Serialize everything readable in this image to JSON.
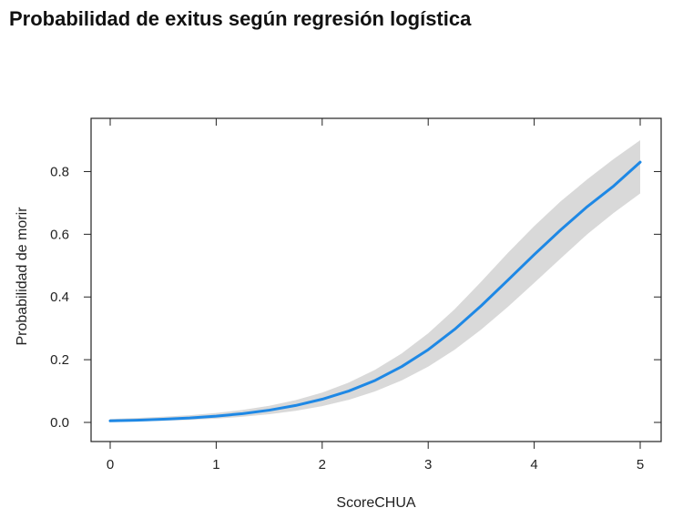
{
  "page": {
    "title": "Probabilidad de exitus según regresión logística"
  },
  "chart_data": {
    "type": "line",
    "title": "Probabilidad de exitus según regresión logística",
    "xlabel": "ScoreCHUA",
    "ylabel": "Probabilidad de morir",
    "xlim": [
      0,
      5
    ],
    "ylim": [
      0,
      0.9
    ],
    "x_ticks": [
      "0",
      "1",
      "2",
      "3",
      "4",
      "5"
    ],
    "y_ticks": [
      "0.0",
      "0.2",
      "0.4",
      "0.6",
      "0.8"
    ],
    "grid": false,
    "legend": "none",
    "line_color": "#1E88E5",
    "band_color": "#D9D9D9",
    "series": [
      {
        "x": [
          0,
          0.25,
          0.5,
          0.75,
          1,
          1.25,
          1.5,
          1.75,
          2,
          2.25,
          2.5,
          2.75,
          3,
          3.25,
          3.5,
          3.75,
          4,
          4.25,
          4.5,
          4.75,
          5
        ],
        "y": [
          0.005,
          0.007,
          0.01,
          0.014,
          0.02,
          0.028,
          0.039,
          0.054,
          0.074,
          0.1,
          0.134,
          0.178,
          0.232,
          0.297,
          0.372,
          0.453,
          0.535,
          0.614,
          0.688,
          0.754,
          0.83
        ],
        "lower": [
          0.002,
          0.003,
          0.005,
          0.008,
          0.012,
          0.018,
          0.026,
          0.037,
          0.052,
          0.072,
          0.099,
          0.134,
          0.178,
          0.232,
          0.296,
          0.368,
          0.445,
          0.523,
          0.6,
          0.668,
          0.73
        ],
        "upper": [
          0.011,
          0.014,
          0.018,
          0.023,
          0.03,
          0.04,
          0.053,
          0.071,
          0.095,
          0.127,
          0.168,
          0.22,
          0.284,
          0.361,
          0.449,
          0.54,
          0.626,
          0.705,
          0.775,
          0.84,
          0.9
        ]
      }
    ]
  }
}
